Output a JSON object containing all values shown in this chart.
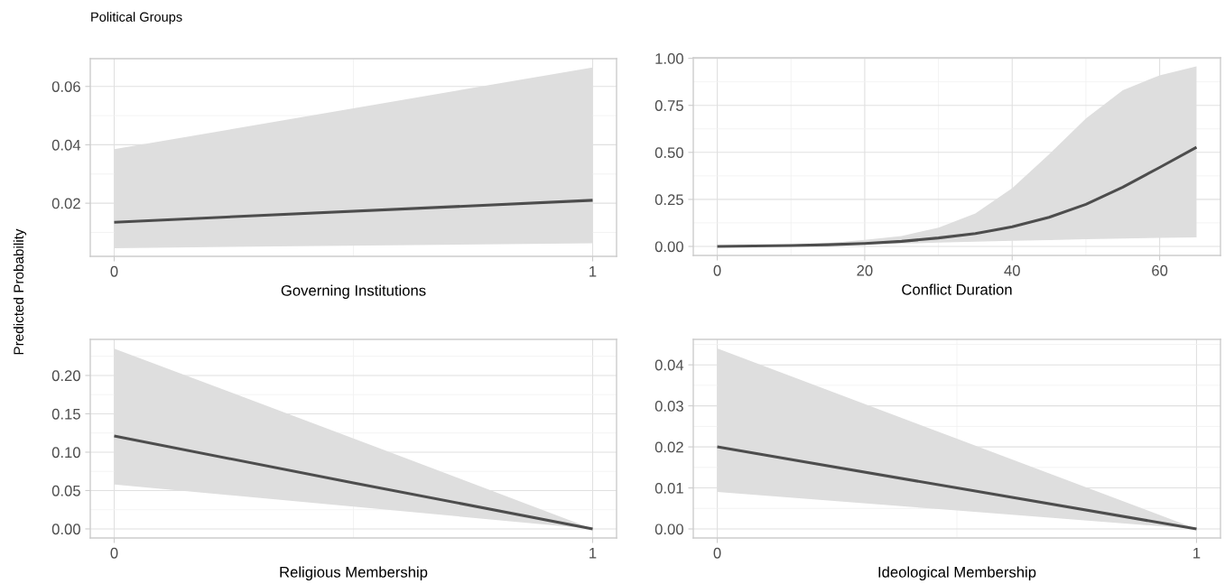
{
  "chart_data": [
    {
      "type": "line",
      "title": "Political Groups",
      "ylabel": "Predicted Probability",
      "xlabel": "Governing Institutions",
      "grid": true,
      "xlim": [
        -0.05,
        1.05
      ],
      "ylim": [
        0.0018,
        0.0695
      ],
      "xticks": [
        0,
        1
      ],
      "yticks": [
        0.02,
        0.04,
        0.06
      ],
      "series": [
        {
          "color": "#4d4d4d",
          "x": [
            0,
            1
          ],
          "values": [
            0.0135,
            0.021
          ],
          "lower": [
            0.0046,
            0.0063
          ],
          "upper": [
            0.0385,
            0.0665
          ]
        }
      ]
    },
    {
      "type": "line",
      "xlabel": "Conflict Duration",
      "grid": true,
      "xlim": [
        -3.25,
        68.25
      ],
      "ylim": [
        -0.048,
        1.003
      ],
      "xticks": [
        0,
        20,
        40,
        60
      ],
      "yticks": [
        {
          "value": 0,
          "label": "0.00"
        },
        {
          "value": 0.25,
          "label": "0.25"
        },
        {
          "value": 0.5,
          "label": "0.50"
        },
        {
          "value": 0.75,
          "label": "0.75"
        },
        {
          "value": 1,
          "label": "1.00"
        }
      ],
      "series": [
        {
          "color": "#4d4d4d",
          "x": [
            0,
            5,
            10,
            15,
            20,
            25,
            30,
            35,
            40,
            45,
            50,
            55,
            60,
            65
          ],
          "values": [
            0.0,
            0.002,
            0.005,
            0.009,
            0.016,
            0.027,
            0.045,
            0.068,
            0.104,
            0.155,
            0.224,
            0.315,
            0.42,
            0.527
          ],
          "lower": [
            0.0,
            0.001,
            0.003,
            0.006,
            0.01,
            0.015,
            0.02,
            0.025,
            0.03,
            0.034,
            0.038,
            0.042,
            0.045,
            0.048
          ],
          "upper": [
            0.001,
            0.003,
            0.008,
            0.018,
            0.035,
            0.055,
            0.1,
            0.175,
            0.31,
            0.49,
            0.68,
            0.83,
            0.91,
            0.957
          ]
        }
      ]
    },
    {
      "type": "line",
      "xlabel": "Religious Membership",
      "grid": true,
      "xlim": [
        -0.05,
        1.05
      ],
      "ylim": [
        -0.0118,
        0.247
      ],
      "xticks": [
        0,
        1
      ],
      "yticks": [
        {
          "value": 0,
          "label": "0.00"
        },
        {
          "value": 0.05,
          "label": "0.05"
        },
        {
          "value": 0.1,
          "label": "0.10"
        },
        {
          "value": 0.15,
          "label": "0.15"
        },
        {
          "value": 0.2,
          "label": "0.20"
        }
      ],
      "series": [
        {
          "color": "#4d4d4d",
          "x": [
            0,
            0.5,
            1
          ],
          "values": [
            0.121,
            0.06,
            0.0
          ],
          "lower": [
            0.058,
            0.029,
            0.0
          ],
          "upper": [
            0.235,
            0.118,
            0.0
          ]
        }
      ]
    },
    {
      "type": "line",
      "xlabel": "Ideological Membership",
      "grid": true,
      "xlim": [
        -0.05,
        1.05
      ],
      "ylim": [
        -0.0022,
        0.0462
      ],
      "xticks": [
        0,
        1
      ],
      "yticks": [
        {
          "value": 0,
          "label": "0.00"
        },
        {
          "value": 0.01,
          "label": "0.01"
        },
        {
          "value": 0.02,
          "label": "0.02"
        },
        {
          "value": 0.03,
          "label": "0.03"
        },
        {
          "value": 0.04,
          "label": "0.04"
        }
      ],
      "series": [
        {
          "color": "#4d4d4d",
          "x": [
            0,
            0.5,
            1
          ],
          "values": [
            0.02,
            0.01,
            0.0
          ],
          "lower": [
            0.009,
            0.0045,
            0.0
          ],
          "upper": [
            0.044,
            0.022,
            0.0
          ]
        }
      ]
    }
  ]
}
